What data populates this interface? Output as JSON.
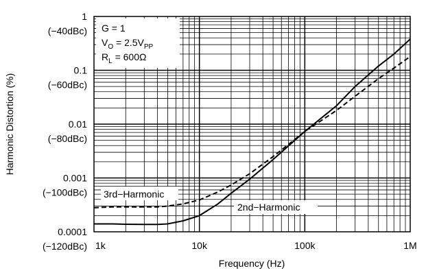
{
  "chart_data": {
    "type": "line",
    "x_scale": "log",
    "y_scale": "log",
    "xlabel": "Frequency (Hz)",
    "ylabel": "Harmonic Distortion (%)",
    "xlim": [
      1000,
      1000000
    ],
    "ylim": [
      0.0001,
      1
    ],
    "grid": true,
    "x_ticks": [
      {
        "value": 1000,
        "label": "1k"
      },
      {
        "value": 10000,
        "label": "10k"
      },
      {
        "value": 100000,
        "label": "100k"
      },
      {
        "value": 1000000,
        "label": "1M"
      }
    ],
    "y_ticks": [
      {
        "value": 1,
        "label": "1",
        "label2": "(−40dBc)"
      },
      {
        "value": 0.1,
        "label": "0.1",
        "label2": "(−60dBc)"
      },
      {
        "value": 0.01,
        "label": "0.01",
        "label2": "(−80dBc)"
      },
      {
        "value": 0.001,
        "label": "0.001",
        "label2": "(−100dBc)"
      },
      {
        "value": 0.0001,
        "label": "0.0001",
        "label2": "(−120dBc)"
      }
    ],
    "conditions": {
      "gain": "G = 1",
      "vo_prefix": "V",
      "vo_sub": "O",
      "vo_mid": " = 2.5V",
      "vo_sub2": "PP",
      "rl_prefix": "R",
      "rl_sub": "L",
      "rl_suffix": " = 600Ω"
    },
    "series": [
      {
        "name": "2nd−Harmonic",
        "style": "solid",
        "x": [
          1000,
          1500,
          2000,
          3000,
          4000,
          5000,
          7000,
          10000,
          15000,
          20000,
          30000,
          50000,
          100000,
          200000,
          300000,
          500000,
          700000,
          1000000
        ],
        "y": [
          0.00014,
          0.00014,
          0.000138,
          0.000137,
          0.000137,
          0.00014,
          0.00016,
          0.0002,
          0.00033,
          0.00052,
          0.00095,
          0.0022,
          0.0073,
          0.022,
          0.05,
          0.12,
          0.2,
          0.38
        ]
      },
      {
        "name": "3rd−Harmonic",
        "style": "dashed",
        "x": [
          1000,
          1500,
          2000,
          3000,
          4000,
          5000,
          7000,
          10000,
          15000,
          20000,
          30000,
          50000,
          100000,
          200000,
          300000,
          500000,
          700000,
          1000000
        ],
        "y": [
          0.00028,
          0.00029,
          0.00029,
          0.00029,
          0.00029,
          0.0003,
          0.00033,
          0.00039,
          0.00055,
          0.00074,
          0.0012,
          0.0025,
          0.0073,
          0.018,
          0.033,
          0.07,
          0.11,
          0.18
        ]
      }
    ],
    "series_labels": [
      "3rd−Harmonic",
      "2nd−Harmonic"
    ],
    "colors": {
      "line": "#000000",
      "grid": "#000000",
      "background": "#ffffff"
    }
  }
}
